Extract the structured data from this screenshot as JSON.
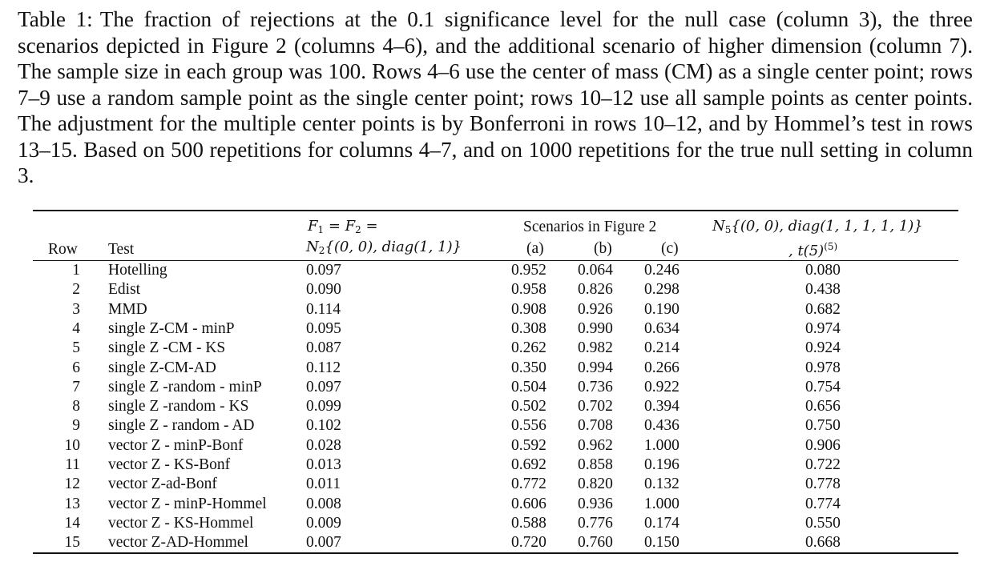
{
  "caption": {
    "label": "Table 1:",
    "text": "The fraction of rejections at the 0.1 significance level for the null case (column 3), the three scenarios depicted in Figure 2 (columns 4–6), and the additional scenario of higher dimension (column 7). The sample size in each group was 100. Rows 4–6 use the center of mass (CM) as a single center point; rows 7–9 use a random sample point as the single center point; rows 10–12 use all sample points as center points. The adjustment for the multiple center points is by Bonferroni in rows 10–12, and by Hommel’s test in rows 13–15. Based on 500 repetitions for columns 4–7, and on 1000 repetitions for the true null setting in column 3."
  },
  "header": {
    "row": "Row",
    "test": "Test",
    "col3_line1": "F1 = F2 =",
    "col3_line2": "N2{(0, 0), diag(1, 1)}",
    "scenarios": "Scenarios in Figure 2",
    "a": "(a)",
    "b": "(b)",
    "c": "(c)",
    "col7_line1": "N5{(0, 0), diag(1, 1, 1, 1, 1)}",
    "col7_line2": ", t(5)(5)"
  },
  "rows": [
    {
      "row": "1",
      "test": "Hotelling",
      "c3": "0.097",
      "a": "0.952",
      "b": "0.064",
      "c": "0.246",
      "c7": "0.080"
    },
    {
      "row": "2",
      "test": "Edist",
      "c3": "0.090",
      "a": "0.958",
      "b": "0.826",
      "c": "0.298",
      "c7": "0.438"
    },
    {
      "row": "3",
      "test": "MMD",
      "c3": "0.114",
      "a": "0.908",
      "b": "0.926",
      "c": "0.190",
      "c7": "0.682"
    },
    {
      "row": "4",
      "test": "single Z-CM - minP",
      "c3": "0.095",
      "a": "0.308",
      "b": "0.990",
      "c": "0.634",
      "c7": "0.974"
    },
    {
      "row": "5",
      "test": "single Z -CM - KS",
      "c3": "0.087",
      "a": "0.262",
      "b": "0.982",
      "c": "0.214",
      "c7": "0.924"
    },
    {
      "row": "6",
      "test": "single Z-CM-AD",
      "c3": "0.112",
      "a": "0.350",
      "b": "0.994",
      "c": "0.266",
      "c7": "0.978"
    },
    {
      "row": "7",
      "test": "single Z -random - minP",
      "c3": "0.097",
      "a": "0.504",
      "b": "0.736",
      "c": "0.922",
      "c7": "0.754"
    },
    {
      "row": "8",
      "test": "single Z -random - KS",
      "c3": "0.099",
      "a": "0.502",
      "b": "0.702",
      "c": "0.394",
      "c7": "0.656"
    },
    {
      "row": "9",
      "test": "single Z - random - AD",
      "c3": "0.102",
      "a": "0.556",
      "b": "0.708",
      "c": "0.436",
      "c7": "0.750"
    },
    {
      "row": "10",
      "test": "vector Z - minP-Bonf",
      "c3": "0.028",
      "a": "0.592",
      "b": "0.962",
      "c": "1.000",
      "c7": "0.906"
    },
    {
      "row": "11",
      "test": "vector Z - KS-Bonf",
      "c3": "0.013",
      "a": "0.692",
      "b": "0.858",
      "c": "0.196",
      "c7": "0.722"
    },
    {
      "row": "12",
      "test": "vector Z-ad-Bonf",
      "c3": "0.011",
      "a": "0.772",
      "b": "0.820",
      "c": "0.132",
      "c7": "0.778"
    },
    {
      "row": "13",
      "test": "vector Z - minP-Hommel",
      "c3": "0.008",
      "a": "0.606",
      "b": "0.936",
      "c": "1.000",
      "c7": "0.774"
    },
    {
      "row": "14",
      "test": "vector Z - KS-Hommel",
      "c3": "0.009",
      "a": "0.588",
      "b": "0.776",
      "c": "0.174",
      "c7": "0.550"
    },
    {
      "row": "15",
      "test": "vector Z-AD-Hommel",
      "c3": "0.007",
      "a": "0.720",
      "b": "0.760",
      "c": "0.150",
      "c7": "0.668"
    }
  ]
}
